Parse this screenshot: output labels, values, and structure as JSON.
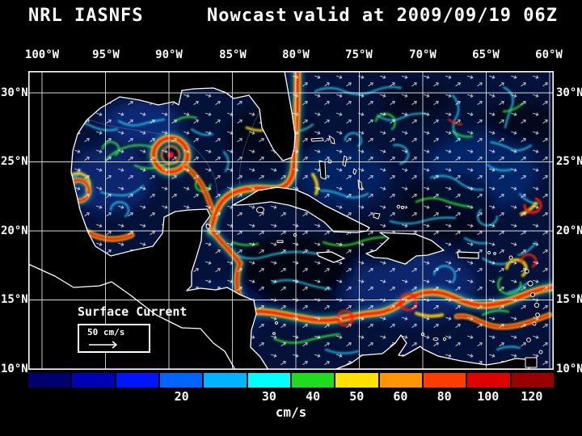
{
  "title": {
    "left": "NRL IASNFS",
    "center": "Nowcast",
    "right": "valid at 2009/09/19 06Z"
  },
  "axes": {
    "lon_labels": [
      "100°W",
      "95°W",
      "90°W",
      "85°W",
      "80°W",
      "75°W",
      "70°W",
      "65°W",
      "60°W"
    ],
    "lat_labels": [
      "30°N",
      "25°N",
      "20°N",
      "15°N",
      "10°N"
    ]
  },
  "annotations": {
    "field_label": "Surface Current",
    "scale_value": "50 cm/s"
  },
  "colorbar": {
    "units": "cm/s",
    "tick_labels": [
      "20",
      "30",
      "40",
      "50",
      "60",
      "80",
      "100",
      "120"
    ],
    "segment_colors": [
      "#00006e",
      "#0000b4",
      "#0014ff",
      "#0064ff",
      "#00b4ff",
      "#00ffff",
      "#1edc1e",
      "#ffe100",
      "#ff9600",
      "#ff3c00",
      "#e10000",
      "#9b0000"
    ]
  },
  "palette": {
    "background": "#000000",
    "text": "#ffffff",
    "coastline": "#ffffff",
    "grid": "#ffffff",
    "ocean_base": "#04123a"
  },
  "chart_data": {
    "type": "heatmap",
    "title": "NRL IASNFS Nowcast valid at 2009/09/19 06Z",
    "variable": "Surface Current",
    "units": "cm/s",
    "colorbar_ticks": [
      20,
      30,
      40,
      50,
      60,
      80,
      100,
      120
    ],
    "lon_ticks_deg_w": [
      100,
      95,
      90,
      85,
      80,
      75,
      70,
      65,
      60
    ],
    "lat_ticks_deg_n": [
      30,
      25,
      20,
      15,
      10
    ],
    "reference_vector_cm_s": 50
  }
}
